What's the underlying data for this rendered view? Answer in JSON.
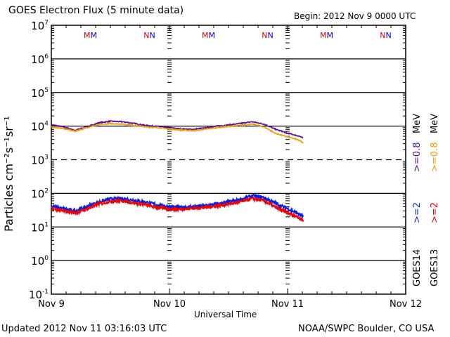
{
  "header": {
    "title": "GOES Electron Flux (5 minute data)",
    "begin": "Begin: 2012 Nov 9 0000 UTC"
  },
  "footer": {
    "updated": "Updated 2012 Nov 11 03:16:03 UTC",
    "source": "NOAA/SWPC Boulder, CO USA"
  },
  "chart_data": {
    "type": "line",
    "title": "GOES Electron Flux (5 minute data)",
    "xlabel": "Universal Time",
    "ylabel": "Particles cm⁻²s⁻¹sr⁻¹",
    "yscale": "log",
    "ylim_exp": [
      -1,
      7
    ],
    "ytick_labels": [
      {
        "base": "10",
        "exp": "7",
        "e": 7
      },
      {
        "base": "10",
        "exp": "6",
        "e": 6
      },
      {
        "base": "10",
        "exp": "5",
        "e": 5
      },
      {
        "base": "10",
        "exp": "4",
        "e": 4
      },
      {
        "base": "10",
        "exp": "3",
        "e": 3
      },
      {
        "base": "10",
        "exp": "2",
        "e": 2
      },
      {
        "base": "10",
        "exp": "1",
        "e": 1
      },
      {
        "base": "10",
        "exp": "0",
        "e": 0
      },
      {
        "base": "10",
        "exp": "-1",
        "e": -1
      }
    ],
    "xlim_days": [
      0,
      3
    ],
    "xtick_labels": [
      {
        "label": "Nov 9",
        "day": 0
      },
      {
        "label": "Nov 10",
        "day": 1
      },
      {
        "label": "Nov 11",
        "day": 2
      },
      {
        "label": "Nov 12",
        "day": 3
      }
    ],
    "grid": "solid horizontal lines at 10^6, 10^5, 10^4, 10^2, 10^1, 10^0; dashed at 10^3; dotted vertical at day boundaries",
    "dashed_threshold": 1000,
    "markers": [
      {
        "label": "M",
        "day": 0.33,
        "colors": [
          "#e00000",
          "#0000e0"
        ]
      },
      {
        "label": "N",
        "day": 0.83,
        "colors": [
          "#e00000",
          "#0000e0"
        ]
      },
      {
        "label": "M",
        "day": 1.33,
        "colors": [
          "#e00000",
          "#0000e0"
        ]
      },
      {
        "label": "N",
        "day": 1.83,
        "colors": [
          "#e00000",
          "#0000e0"
        ]
      },
      {
        "label": "M",
        "day": 2.33,
        "colors": [
          "#e00000",
          "#0000e0"
        ]
      },
      {
        "label": "N",
        "day": 2.83,
        "colors": [
          "#e00000",
          "#0000e0"
        ]
      }
    ],
    "series": [
      {
        "name": "GOES14 >=0.8 MeV",
        "color": "#5a0aa0",
        "x_days": [
          0,
          0.1,
          0.2,
          0.3,
          0.4,
          0.5,
          0.6,
          0.7,
          0.8,
          0.9,
          1.0,
          1.1,
          1.2,
          1.3,
          1.4,
          1.5,
          1.6,
          1.7,
          1.8,
          1.9,
          2.0,
          2.1,
          2.135
        ],
        "values": [
          11000,
          9500,
          7500,
          9500,
          12500,
          14000,
          13500,
          12000,
          10500,
          9800,
          9000,
          8200,
          8000,
          8800,
          10000,
          10800,
          12000,
          13500,
          11500,
          8000,
          6200,
          5000,
          4300
        ]
      },
      {
        "name": "GOES13 >=0.8 MeV",
        "color": "#f0a000",
        "x_days": [
          0,
          0.1,
          0.2,
          0.3,
          0.4,
          0.5,
          0.6,
          0.7,
          0.8,
          0.9,
          1.0,
          1.1,
          1.2,
          1.3,
          1.4,
          1.5,
          1.6,
          1.7,
          1.8,
          1.9,
          2.0,
          2.1,
          2.135
        ],
        "values": [
          9500,
          8500,
          7000,
          9000,
          11000,
          12000,
          11500,
          10500,
          9500,
          9000,
          8200,
          7600,
          7300,
          8000,
          9000,
          9800,
          10500,
          11500,
          9500,
          6000,
          4800,
          3800,
          3100
        ]
      },
      {
        "name": "GOES14 >=2 MeV",
        "color": "#0020f0",
        "x_days": [
          0,
          0.1,
          0.2,
          0.3,
          0.4,
          0.5,
          0.6,
          0.7,
          0.8,
          0.9,
          1.0,
          1.1,
          1.2,
          1.3,
          1.4,
          1.5,
          1.6,
          1.7,
          1.8,
          1.9,
          2.0,
          2.1,
          2.135
        ],
        "values": [
          42,
          35,
          30,
          40,
          55,
          68,
          70,
          62,
          55,
          45,
          40,
          38,
          40,
          42,
          48,
          55,
          65,
          85,
          75,
          50,
          35,
          24,
          20
        ]
      },
      {
        "name": "GOES13 >=2 MeV",
        "color": "#f00000",
        "x_days": [
          0,
          0.1,
          0.2,
          0.3,
          0.4,
          0.5,
          0.6,
          0.7,
          0.8,
          0.9,
          1.0,
          1.1,
          1.2,
          1.3,
          1.4,
          1.5,
          1.6,
          1.7,
          1.8,
          1.9,
          2.0,
          2.1,
          2.135
        ],
        "values": [
          35,
          30,
          26,
          34,
          48,
          58,
          60,
          52,
          45,
          38,
          34,
          34,
          36,
          38,
          42,
          48,
          55,
          70,
          60,
          38,
          26,
          19,
          15
        ]
      }
    ],
    "legend": {
      "placement": "right, vertical text",
      "columns": [
        {
          "sat": "GOES14",
          "low": ">=2",
          "low_color": "#0020f0",
          "high": ">=0.8",
          "high_color": "#5a0aa0",
          "unit": "MeV"
        },
        {
          "sat": "GOES13",
          "low": ">=2",
          "low_color": "#f00000",
          "high": ">=0.8",
          "high_color": "#f0a000",
          "unit": "MeV"
        }
      ]
    }
  }
}
